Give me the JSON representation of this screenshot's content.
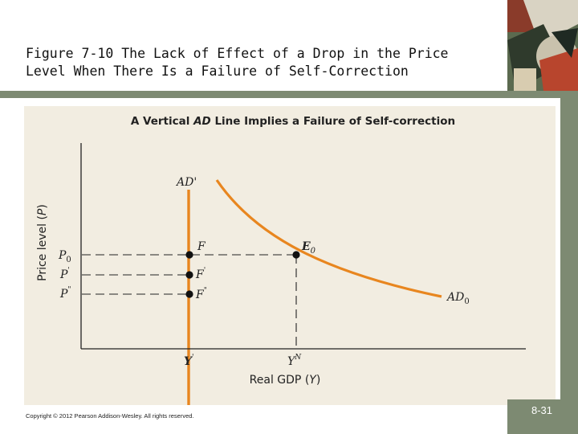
{
  "slide": {
    "title_line1": "Figure 7-10  The Lack of Effect of a Drop in the Price",
    "title_line2": "Level When There Is a Failure of Self-Correction",
    "copyright": "Copyright © 2012 Pearson Addison-Wesley. All rights reserved.",
    "slide_number": "8-31"
  },
  "figure": {
    "heading_pre": "A Vertical ",
    "heading_italic": "AD",
    "heading_post": " Line Implies a Failure of Self-correction",
    "y_axis_label_pre": "Price level (",
    "y_axis_label_var": "P",
    "y_axis_label_post": ")",
    "x_axis_label_pre": "Real GDP (",
    "x_axis_label_var": "Y",
    "x_axis_label_post": ")",
    "vertical_ad_label": "AD'",
    "curve_label_main": "AD",
    "curve_label_sub": "0",
    "y_ticks": [
      {
        "main": "P",
        "sub": "0",
        "sup": ""
      },
      {
        "main": "P",
        "sub": "",
        "sup": "'"
      },
      {
        "main": "P",
        "sub": "",
        "sup": "\""
      }
    ],
    "x_ticks": [
      {
        "main": "Y",
        "sup": "'"
      },
      {
        "main": "Y",
        "sup": "N"
      }
    ],
    "points": [
      {
        "label_main": "E",
        "label_sub": "0",
        "label_sup": ""
      },
      {
        "label_main": "F",
        "label_sub": "",
        "label_sup": ""
      },
      {
        "label_main": "F",
        "label_sub": "",
        "label_sup": "'"
      },
      {
        "label_main": "F",
        "label_sub": "",
        "label_sup": "\""
      }
    ],
    "colors": {
      "panel_bg": "#f2ede1",
      "curve": "#e8861f",
      "axis": "#222222",
      "accent_bar": "#7d8a72"
    }
  }
}
